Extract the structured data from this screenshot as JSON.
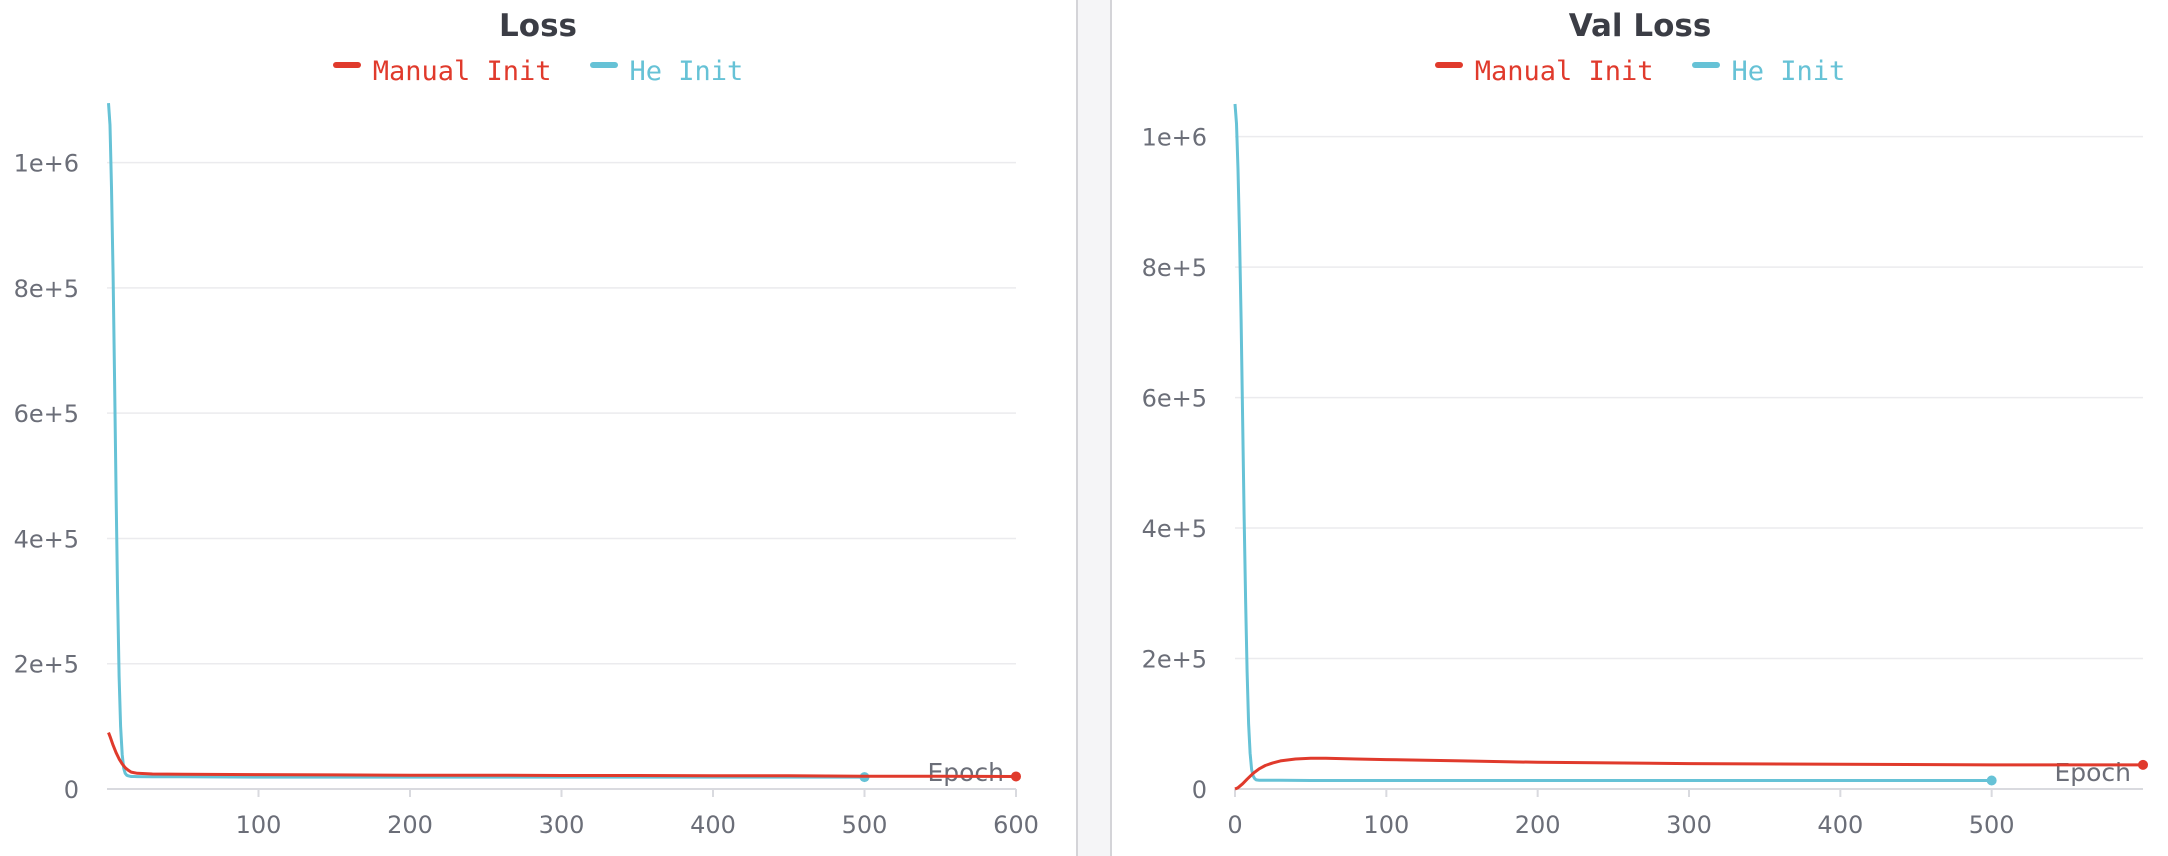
{
  "chart_data": [
    {
      "type": "line",
      "title": "Loss",
      "xlabel": "Epoch",
      "ylabel": "",
      "xlim": [
        0,
        600
      ],
      "ylim": [
        0,
        1100000
      ],
      "xticks": [
        100,
        200,
        300,
        400,
        500,
        600
      ],
      "yticks": [
        0,
        200000,
        400000,
        600000,
        800000,
        1000000
      ],
      "ytick_labels": [
        "0",
        "2e+5",
        "4e+5",
        "6e+5",
        "8e+5",
        "1e+6"
      ],
      "grid": true,
      "legend_position": "top-center",
      "series": [
        {
          "name": "Manual Init",
          "color": "#e03a2c",
          "x": [
            1,
            2,
            4,
            6,
            8,
            10,
            12,
            14,
            16,
            20,
            30,
            50,
            100,
            150,
            200,
            250,
            300,
            350,
            400,
            450,
            500,
            550,
            600
          ],
          "y": [
            90000,
            84000,
            70000,
            58000,
            48000,
            40000,
            34000,
            30000,
            27000,
            25000,
            24000,
            23500,
            23000,
            22500,
            22000,
            22000,
            21500,
            21500,
            21000,
            21000,
            20500,
            20500,
            20000
          ],
          "end_marker": true
        },
        {
          "name": "He Init",
          "color": "#66c2d6",
          "x": [
            1,
            2,
            3,
            4,
            5,
            6,
            7,
            8,
            9,
            10,
            11,
            12,
            13,
            14,
            15,
            16,
            18,
            20,
            30,
            50,
            100,
            200,
            300,
            400,
            500
          ],
          "y": [
            1095000,
            1060000,
            960000,
            820000,
            650000,
            470000,
            310000,
            180000,
            100000,
            55000,
            33000,
            25000,
            22000,
            21000,
            20500,
            20000,
            20000,
            19800,
            19500,
            19500,
            19000,
            19000,
            19000,
            19000,
            19000
          ],
          "end_marker": true
        }
      ]
    },
    {
      "type": "line",
      "title": "Val Loss",
      "xlabel": "Epoch",
      "ylabel": "",
      "xlim": [
        0,
        600
      ],
      "ylim": [
        0,
        1050000
      ],
      "xticks": [
        0,
        100,
        200,
        300,
        400,
        500
      ],
      "yticks": [
        0,
        200000,
        400000,
        600000,
        800000,
        1000000
      ],
      "ytick_labels": [
        "0",
        "2e+5",
        "4e+5",
        "6e+5",
        "8e+5",
        "1e+6"
      ],
      "grid": true,
      "legend_position": "top-center",
      "series": [
        {
          "name": "Manual Init",
          "color": "#e03a2c",
          "x": [
            0,
            2,
            5,
            8,
            12,
            16,
            20,
            25,
            30,
            40,
            50,
            60,
            80,
            100,
            150,
            200,
            300,
            400,
            500,
            550,
            600
          ],
          "y": [
            0,
            2000,
            8000,
            15000,
            24000,
            31000,
            36000,
            40000,
            43000,
            46000,
            47000,
            47000,
            46000,
            45000,
            43000,
            41000,
            39000,
            38000,
            37000,
            37000,
            37000
          ],
          "end_marker": true
        },
        {
          "name": "He Init",
          "color": "#66c2d6",
          "x": [
            0,
            1,
            2,
            3,
            4,
            5,
            6,
            7,
            8,
            9,
            10,
            11,
            12,
            13,
            14,
            16,
            20,
            30,
            50,
            100,
            200,
            300,
            400,
            500
          ],
          "y": [
            1050000,
            1020000,
            950000,
            850000,
            720000,
            570000,
            420000,
            290000,
            180000,
            100000,
            55000,
            30000,
            20000,
            16000,
            14000,
            13500,
            13500,
            13500,
            13000,
            13000,
            13000,
            13000,
            13000,
            13000
          ],
          "end_marker": true
        }
      ]
    }
  ]
}
